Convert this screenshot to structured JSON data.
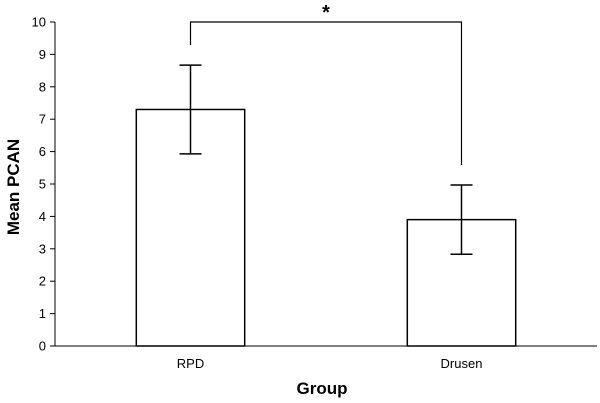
{
  "chart_data": {
    "type": "bar",
    "categories": [
      "RPD",
      "Drusen"
    ],
    "values": [
      7.3,
      3.9
    ],
    "error": [
      1.37,
      1.07
    ],
    "xlabel": "Group",
    "ylabel": "Mean PCAN",
    "ylim": [
      0,
      10
    ],
    "yticks": [
      0,
      1,
      2,
      3,
      4,
      5,
      6,
      7,
      8,
      9,
      10
    ],
    "grid": false,
    "legend": "none",
    "annotation": {
      "text": "*",
      "between": [
        "RPD",
        "Drusen"
      ]
    },
    "colors": {
      "bar_fill": "#ffffff",
      "bar_stroke": "#000000",
      "axis": "#000000"
    }
  }
}
